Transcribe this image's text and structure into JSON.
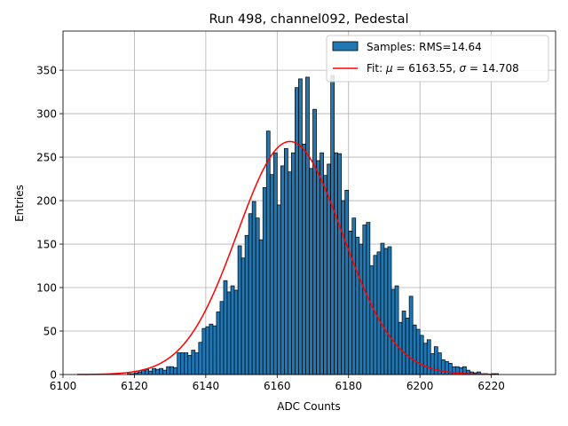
{
  "chart_data": {
    "type": "bar",
    "title": "Run 498, channel092, Pedestal",
    "xlabel": "ADC Counts",
    "ylabel": "Entries",
    "xlim": [
      6100,
      6238
    ],
    "ylim": [
      0,
      395
    ],
    "xticks": [
      6100,
      6120,
      6140,
      6160,
      6180,
      6200,
      6220
    ],
    "yticks": [
      0,
      50,
      100,
      150,
      200,
      250,
      300,
      350
    ],
    "grid": true,
    "legend_position": "top-right",
    "legend": {
      "hist_label": "Samples: RMS=14.64",
      "fit_label_prefix": "Fit: ",
      "fit_mu_symbol": "μ",
      "fit_mu_value": " = 6163.55, ",
      "fit_sigma_symbol": "σ",
      "fit_sigma_value": " = 14.708"
    },
    "histogram": {
      "bin_start": 6104,
      "bin_width": 1,
      "color": "#1f77b4",
      "edgecolor": "#000000",
      "counts": [
        0,
        0,
        0,
        0,
        0,
        0,
        0,
        0,
        0,
        0,
        0,
        0,
        0,
        0,
        1,
        1,
        2,
        3,
        5,
        6,
        4,
        7,
        6,
        7,
        5,
        9,
        9,
        8,
        25,
        25,
        25,
        22,
        28,
        25,
        37,
        53,
        55,
        58,
        56,
        72,
        84,
        108,
        95,
        102,
        97,
        148,
        134,
        160,
        185,
        199,
        180,
        155,
        215,
        280,
        230,
        255,
        195,
        240,
        260,
        233,
        255,
        330,
        340,
        265,
        342,
        237,
        305,
        246,
        255,
        229,
        242,
        344,
        255,
        254,
        200,
        212,
        165,
        180,
        158,
        150,
        172,
        175,
        125,
        137,
        141,
        151,
        145,
        147,
        98,
        102,
        60,
        73,
        65,
        90,
        57,
        52,
        45,
        36,
        40,
        24,
        32,
        25,
        17,
        15,
        13,
        9,
        9,
        8,
        9,
        5,
        3,
        2,
        3,
        1,
        1,
        0,
        1,
        1,
        0,
        0,
        0
      ]
    },
    "fit": {
      "type": "gaussian",
      "mu": 6163.55,
      "sigma": 14.708,
      "amplitude": 268,
      "x_range": [
        6104,
        6220
      ],
      "color": "#ff0000"
    }
  }
}
